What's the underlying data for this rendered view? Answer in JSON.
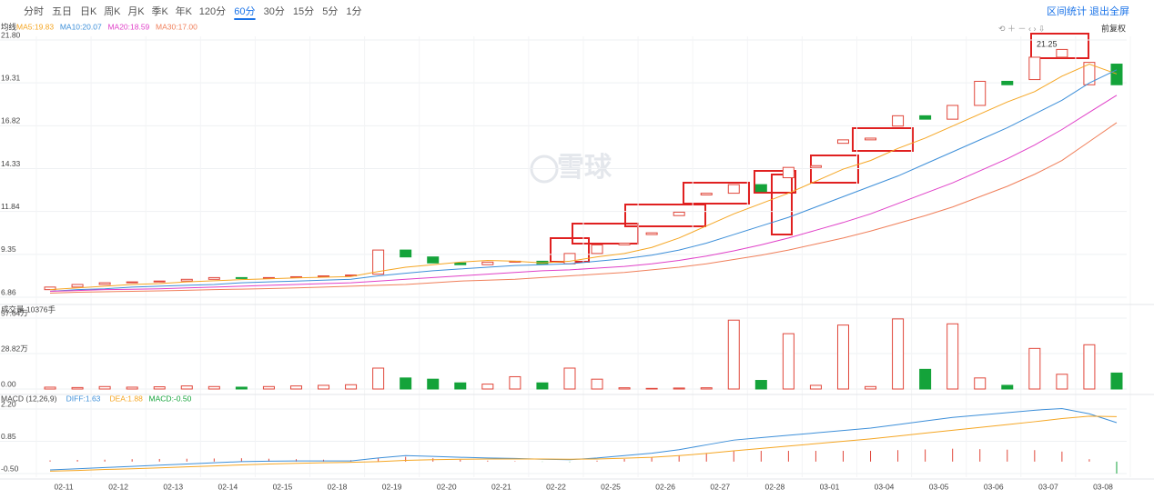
{
  "tabs": [
    "分时",
    "五日",
    "日K",
    "周K",
    "月K",
    "季K",
    "年K",
    "120分",
    "60分",
    "30分",
    "15分",
    "5分",
    "1分"
  ],
  "active_tab": 8,
  "right_links": [
    "区间统计",
    "退出全屏"
  ],
  "adjust": "前复权",
  "watermark": "雪球",
  "ma_label": "均线",
  "annotation": "21.25",
  "chart_data": [
    {
      "type": "candlestick",
      "title": null,
      "open": [
        7.3,
        7.45,
        7.6,
        7.7,
        7.75,
        7.8,
        7.9,
        8.0,
        7.95,
        8.0,
        8.05,
        8.1,
        8.2,
        9.6,
        9.2,
        8.85,
        8.75,
        8.9,
        8.95,
        8.8,
        9.4,
        9.9,
        10.5,
        11.6,
        12.8,
        12.9,
        13.4,
        13.8,
        14.4,
        15.8,
        16.0,
        16.8,
        17.4,
        17.2,
        18.0,
        19.4,
        19.5,
        20.8,
        19.2,
        20.4
      ],
      "close": [
        7.45,
        7.6,
        7.7,
        7.75,
        7.8,
        7.9,
        8.0,
        7.95,
        8.0,
        8.05,
        8.1,
        8.15,
        9.6,
        9.2,
        8.85,
        8.75,
        8.9,
        8.95,
        8.8,
        9.4,
        9.9,
        10.0,
        10.6,
        11.8,
        12.9,
        13.4,
        13.0,
        14.4,
        14.5,
        16.0,
        16.1,
        17.4,
        17.2,
        18.0,
        19.4,
        19.2,
        20.8,
        21.25,
        20.5,
        19.2
      ],
      "up_color": "#e0463a",
      "down_color": "#14a33a",
      "series": [
        {
          "name": "MA5:19.83",
          "color": "#f5a623",
          "values": [
            7.3,
            7.4,
            7.5,
            7.6,
            7.65,
            7.75,
            7.82,
            7.88,
            7.93,
            7.98,
            8.02,
            8.06,
            8.35,
            8.6,
            8.75,
            8.9,
            9.0,
            8.95,
            8.85,
            8.95,
            9.2,
            9.4,
            9.75,
            10.3,
            11.0,
            11.7,
            12.3,
            12.9,
            13.6,
            14.3,
            14.8,
            15.5,
            16.1,
            16.8,
            17.5,
            18.2,
            18.8,
            19.7,
            20.4,
            19.83
          ]
        },
        {
          "name": "MA10:20.07",
          "color": "#3d8fd9",
          "values": [
            7.2,
            7.3,
            7.35,
            7.45,
            7.5,
            7.55,
            7.6,
            7.7,
            7.75,
            7.8,
            7.85,
            7.9,
            8.1,
            8.25,
            8.4,
            8.5,
            8.6,
            8.7,
            8.75,
            8.8,
            8.95,
            9.1,
            9.3,
            9.6,
            10.0,
            10.5,
            11.0,
            11.5,
            12.1,
            12.7,
            13.3,
            13.9,
            14.6,
            15.3,
            16.0,
            16.7,
            17.5,
            18.3,
            19.3,
            20.07
          ]
        },
        {
          "name": "MA20:18.59",
          "color": "#e040c8",
          "values": [
            7.2,
            7.25,
            7.3,
            7.32,
            7.35,
            7.4,
            7.45,
            7.5,
            7.55,
            7.6,
            7.65,
            7.7,
            7.8,
            7.9,
            8.0,
            8.1,
            8.2,
            8.3,
            8.4,
            8.45,
            8.55,
            8.65,
            8.8,
            9.0,
            9.25,
            9.55,
            9.9,
            10.3,
            10.75,
            11.2,
            11.7,
            12.3,
            12.9,
            13.5,
            14.2,
            14.9,
            15.7,
            16.6,
            17.6,
            18.59
          ]
        },
        {
          "name": "MA30:17.00",
          "color": "#f07f5a",
          "values": [
            7.1,
            7.15,
            7.18,
            7.2,
            7.23,
            7.26,
            7.3,
            7.33,
            7.36,
            7.4,
            7.45,
            7.5,
            7.55,
            7.6,
            7.7,
            7.8,
            7.85,
            7.9,
            8.0,
            8.1,
            8.2,
            8.3,
            8.45,
            8.6,
            8.8,
            9.05,
            9.3,
            9.6,
            9.95,
            10.3,
            10.7,
            11.15,
            11.6,
            12.1,
            12.7,
            13.3,
            14.0,
            14.8,
            15.9,
            17.0
          ]
        }
      ],
      "ylim": [
        6.86,
        21.8
      ],
      "yticks": [
        {
          "value": 21.8,
          "label": "21.80"
        },
        19.31,
        16.82,
        14.33,
        11.84,
        9.35,
        6.86
      ],
      "grid": true
    },
    {
      "type": "bar",
      "title": "成交量 10376手",
      "values": [
        1.5,
        1.2,
        2,
        1.5,
        1.8,
        2.5,
        2,
        1.5,
        2,
        2.5,
        3,
        3.5,
        17,
        9,
        8,
        5,
        4,
        10,
        5,
        17,
        8,
        1,
        0.5,
        0.8,
        1,
        56,
        7,
        45,
        3,
        52,
        2,
        57,
        16,
        53,
        9,
        3,
        33,
        12,
        36,
        13
      ],
      "ylim": [
        0,
        57.64
      ],
      "yticks": [
        {
          "value": 57.64,
          "label": "57.64万"
        },
        {
          "value": 28.82,
          "label": "28.82万"
        },
        {
          "value": 0,
          "label": "0.00"
        }
      ],
      "grid": true
    },
    {
      "type": "macd",
      "title": "MACD (12,26,9)",
      "categories": [
        null,
        "02-11",
        null,
        "02-12",
        null,
        "02-13",
        null,
        "02-14",
        null,
        "02-15",
        null,
        "02-18",
        null,
        "02-19",
        null,
        "02-20",
        null,
        "02-21",
        null,
        "02-22",
        null,
        "02-25",
        null,
        "02-26",
        null,
        "02-27",
        null,
        "02-28",
        null,
        "03-01",
        null,
        "03-04",
        null,
        "03-05",
        null,
        "03-06",
        null,
        "03-07",
        null,
        "03-08"
      ],
      "series": [
        {
          "name": "DIFF:1.63",
          "color": "#3d8fd9",
          "values": [
            -0.35,
            -0.3,
            -0.25,
            -0.2,
            -0.15,
            -0.1,
            -0.05,
            0,
            0.02,
            0.03,
            0.03,
            0.03,
            0.15,
            0.25,
            0.22,
            0.18,
            0.15,
            0.13,
            0.1,
            0.08,
            0.15,
            0.25,
            0.35,
            0.5,
            0.7,
            0.9,
            1.0,
            1.1,
            1.2,
            1.3,
            1.4,
            1.55,
            1.7,
            1.85,
            1.95,
            2.05,
            2.15,
            2.22,
            2.0,
            1.63
          ]
        },
        {
          "name": "DEA:1.88",
          "color": "#f5a623",
          "values": [
            -0.4,
            -0.37,
            -0.33,
            -0.3,
            -0.26,
            -0.22,
            -0.18,
            -0.14,
            -0.1,
            -0.07,
            -0.05,
            -0.03,
            0,
            0.05,
            0.08,
            0.1,
            0.11,
            0.11,
            0.11,
            0.1,
            0.11,
            0.14,
            0.18,
            0.25,
            0.34,
            0.45,
            0.55,
            0.65,
            0.75,
            0.85,
            0.95,
            1.07,
            1.19,
            1.31,
            1.43,
            1.55,
            1.67,
            1.8,
            1.9,
            1.88
          ]
        },
        {
          "name": "MACD:-0.50",
          "color": "#14a33a",
          "up_color": "#e0463a",
          "values": [
            0.05,
            0.07,
            0.08,
            0.1,
            0.11,
            0.12,
            0.13,
            0.14,
            0.12,
            0.1,
            0.08,
            0.06,
            0.15,
            0.2,
            0.14,
            0.08,
            0.04,
            0.02,
            -0.01,
            -0.02,
            0.04,
            0.11,
            0.17,
            0.25,
            0.36,
            0.45,
            0.45,
            0.45,
            0.45,
            0.45,
            0.45,
            0.48,
            0.51,
            0.54,
            0.52,
            0.5,
            0.48,
            0.42,
            0.1,
            -0.5
          ]
        }
      ],
      "ylim": [
        -0.5,
        2.2
      ],
      "yticks": [
        {
          "value": 2.2,
          "label": "2.20"
        },
        0.85,
        {
          "value": -0.5,
          "label": "-0.50"
        }
      ],
      "grid": true
    }
  ]
}
